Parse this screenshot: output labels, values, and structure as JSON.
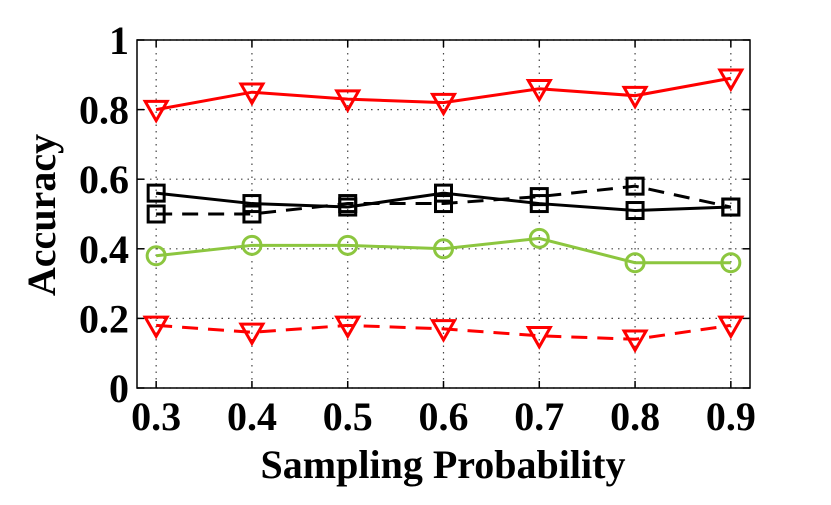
{
  "chart_data": {
    "type": "line",
    "xlabel": "Sampling Probability",
    "ylabel": "Accuracy",
    "x": [
      0.3,
      0.4,
      0.5,
      0.6,
      0.7,
      0.8,
      0.9
    ],
    "xlim": [
      0.28,
      0.92
    ],
    "xticks": [
      0.3,
      0.4,
      0.5,
      0.6,
      0.7,
      0.8,
      0.9
    ],
    "ylim": [
      0,
      1
    ],
    "yticks": [
      0,
      0.2,
      0.4,
      0.6,
      0.8,
      1
    ],
    "grid": true,
    "series": [
      {
        "color": "#ff0000",
        "linestyle": "solid",
        "marker": "triangle-down",
        "values": [
          0.8,
          0.85,
          0.83,
          0.82,
          0.86,
          0.84,
          0.89
        ]
      },
      {
        "color": "#000000",
        "linestyle": "solid",
        "marker": "square",
        "values": [
          0.56,
          0.53,
          0.52,
          0.56,
          0.53,
          0.51,
          0.52
        ]
      },
      {
        "color": "#000000",
        "linestyle": "dashed",
        "marker": "square",
        "values": [
          0.5,
          0.5,
          0.53,
          0.53,
          0.55,
          0.58,
          0.52
        ]
      },
      {
        "color": "#8cc63f",
        "linestyle": "solid",
        "marker": "circle",
        "values": [
          0.38,
          0.41,
          0.41,
          0.4,
          0.43,
          0.36,
          0.36
        ]
      },
      {
        "color": "#ff0000",
        "linestyle": "dashed",
        "marker": "triangle-down",
        "values": [
          0.18,
          0.16,
          0.18,
          0.17,
          0.15,
          0.14,
          0.18
        ]
      }
    ]
  }
}
